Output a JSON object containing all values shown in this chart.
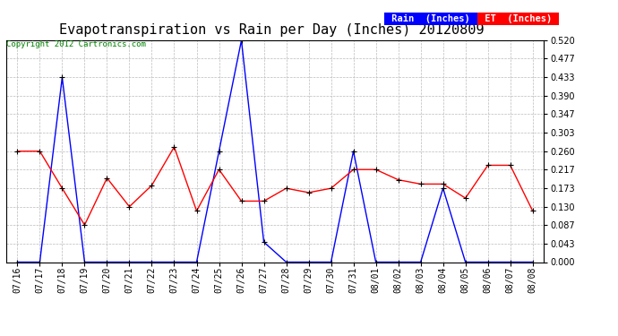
{
  "title": "Evapotranspiration vs Rain per Day (Inches) 20120809",
  "copyright": "Copyright 2012 Cartronics.com",
  "x_labels": [
    "07/16",
    "07/17",
    "07/18",
    "07/19",
    "07/20",
    "07/21",
    "07/22",
    "07/23",
    "07/24",
    "07/25",
    "07/26",
    "07/27",
    "07/28",
    "07/29",
    "07/30",
    "07/31",
    "08/01",
    "08/02",
    "08/03",
    "08/04",
    "08/05",
    "08/06",
    "08/07",
    "08/08"
  ],
  "rain_values": [
    0.0,
    0.0,
    0.433,
    0.0,
    0.0,
    0.0,
    0.0,
    0.0,
    0.0,
    0.26,
    0.52,
    0.047,
    0.0,
    0.0,
    0.0,
    0.26,
    0.0,
    0.0,
    0.0,
    0.173,
    0.0,
    0.0,
    0.0,
    0.0
  ],
  "et_values": [
    0.26,
    0.26,
    0.173,
    0.087,
    0.197,
    0.13,
    0.18,
    0.27,
    0.12,
    0.217,
    0.143,
    0.143,
    0.173,
    0.163,
    0.173,
    0.217,
    0.217,
    0.193,
    0.183,
    0.183,
    0.15,
    0.227,
    0.227,
    0.12
  ],
  "ylim": [
    0.0,
    0.52
  ],
  "yticks": [
    0.0,
    0.043,
    0.087,
    0.13,
    0.173,
    0.217,
    0.26,
    0.303,
    0.347,
    0.39,
    0.433,
    0.477,
    0.52
  ],
  "rain_color": "#0000ff",
  "et_color": "#ff0000",
  "background_color": "#ffffff",
  "grid_color": "#bbbbbb",
  "title_fontsize": 11,
  "tick_fontsize": 7,
  "copyright_color": "#008000",
  "legend_rain_bg": "#0000ff",
  "legend_et_bg": "#ff0000",
  "legend_text_color": "#ffffff",
  "legend_fontsize": 7.5
}
